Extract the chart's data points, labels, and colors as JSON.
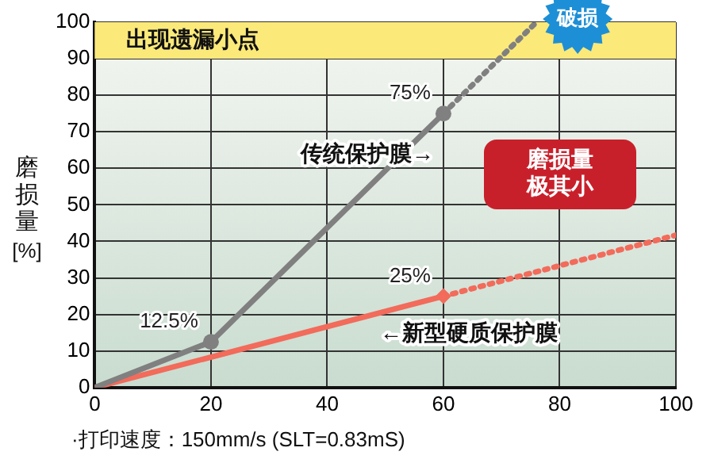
{
  "chart_data": {
    "type": "line",
    "xlabel": "·打印速度：150mm/s (SLT=0.83mS)",
    "ylabel": "磨损量 [%]",
    "xlim": [
      0,
      100
    ],
    "xticks": [
      0,
      20,
      40,
      60,
      80,
      100
    ],
    "ylim": [
      0,
      100
    ],
    "yticks": [
      0,
      10,
      20,
      30,
      40,
      50,
      60,
      70,
      80,
      90,
      100
    ],
    "grid": true,
    "legend": false,
    "series": [
      {
        "name": "传统保护膜→",
        "color": "#808080",
        "x": [
          0,
          20,
          60
        ],
        "values": [
          0,
          12.5,
          75
        ],
        "line_style": "solid",
        "marker": "none"
      },
      {
        "color": "#808080",
        "x": [
          60,
          76
        ],
        "values": [
          75,
          100
        ],
        "line_style": "dotted",
        "marker": "none"
      },
      {
        "type": "scatter",
        "color": "#808080",
        "x": [
          20,
          60
        ],
        "values": [
          12.5,
          75
        ],
        "marker": "circle",
        "value_labels": [
          "12.5%",
          "75%"
        ]
      },
      {
        "name": "←新型硬质保护膜",
        "color": "#f26b5b",
        "x": [
          0,
          60
        ],
        "values": [
          0,
          25
        ],
        "line_style": "solid",
        "marker": "none"
      },
      {
        "color": "#f26b5b",
        "x": [
          60,
          100
        ],
        "values": [
          25,
          41.7
        ],
        "line_style": "dotted",
        "marker": "none"
      },
      {
        "type": "scatter",
        "color": "#f26b5b",
        "x": [
          60
        ],
        "values": [
          25
        ],
        "marker": "diamond",
        "value_labels": [
          "25%"
        ]
      }
    ],
    "bands": [
      {
        "axis": "y",
        "from": 90,
        "to": 100,
        "label": "出现遗漏小点",
        "color": "#fbe97a"
      }
    ],
    "annotations": [
      {
        "text": "破损",
        "x": 76,
        "y": 100
      },
      "磨损量极其小"
    ]
  }
}
